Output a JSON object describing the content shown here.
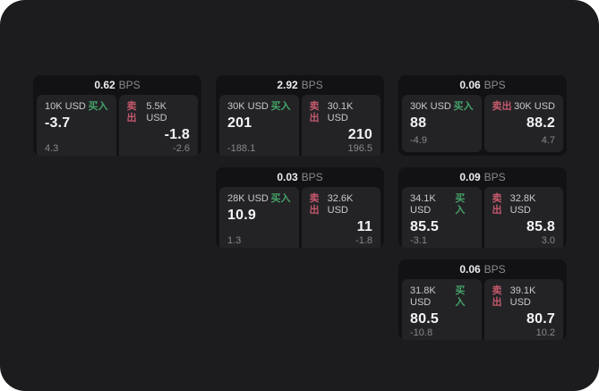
{
  "labels": {
    "bps_unit": "BPS",
    "buy": "买入",
    "sell": "卖出"
  },
  "colors": {
    "buy_color": "#45a268",
    "sell_color": "#c4586c",
    "page_bg": "#1c1c1e",
    "card_bg": "#121214",
    "panel_bg": "#232326"
  },
  "cards": [
    {
      "bps": "0.62",
      "buy": {
        "amount": "10K USD",
        "price": "-3.7",
        "change": "4.3"
      },
      "sell": {
        "amount": "5.5K USD",
        "price": "-1.8",
        "change": "-2.6"
      }
    },
    {
      "bps": "2.92",
      "buy": {
        "amount": "30K USD",
        "price": "201",
        "change": "-188.1"
      },
      "sell": {
        "amount": "30.1K USD",
        "price": "210",
        "change": "196.5"
      }
    },
    {
      "bps": "0.06",
      "buy": {
        "amount": "30K USD",
        "price": "88",
        "change": "-4.9"
      },
      "sell": {
        "amount": "30K USD",
        "price": "88.2",
        "change": "4.7"
      }
    },
    {
      "bps": "0.03",
      "buy": {
        "amount": "28K USD",
        "price": "10.9",
        "change": "1.3"
      },
      "sell": {
        "amount": "32.6K USD",
        "price": "11",
        "change": "-1.8"
      }
    },
    {
      "bps": "0.09",
      "buy": {
        "amount": "34.1K USD",
        "price": "85.5",
        "change": "-3.1"
      },
      "sell": {
        "amount": "32.8K USD",
        "price": "85.8",
        "change": "3.0"
      }
    },
    {
      "bps": "0.06",
      "buy": {
        "amount": "31.8K USD",
        "price": "80.5",
        "change": "-10.8"
      },
      "sell": {
        "amount": "39.1K USD",
        "price": "80.7",
        "change": "10.2"
      }
    }
  ]
}
